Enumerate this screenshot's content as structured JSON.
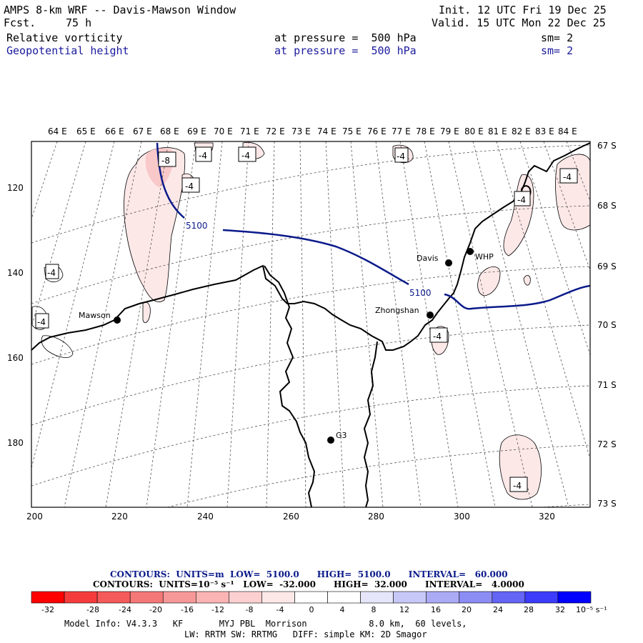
{
  "header": {
    "title": "AMPS 8-km WRF -- Davis-Mawson Window",
    "fcst_label": "Fcst.",
    "fcst_value": "75 h",
    "init": "Init. 12 UTC Fri 19 Dec 25",
    "valid": "Valid. 15 UTC Mon 22 Dec 25",
    "field1_name": "Relative vorticity",
    "field1_level": "at pressure =  500 hPa",
    "field1_sm": "sm= 2",
    "field2_name": "Geopotential height",
    "field2_level": "at pressure =  500 hPa",
    "field2_sm": "sm= 2"
  },
  "map": {
    "lon_labels": [
      "64 E",
      "65 E",
      "66 E",
      "67 E",
      "68 E",
      "69 E",
      "70 E",
      "71 E",
      "72 E",
      "73 E",
      "74 E",
      "75 E",
      "76 E",
      "77 E",
      "78 E",
      "79 E",
      "80 E",
      "81 E",
      "82 E",
      "83 E",
      "84 E"
    ],
    "lat_labels": [
      "67 S",
      "68 S",
      "69 S",
      "70 S",
      "71 S",
      "72 S",
      "73 S"
    ],
    "y_ticks": [
      "120",
      "140",
      "160",
      "180"
    ],
    "x_ticks": [
      "200",
      "220",
      "240",
      "260",
      "280",
      "300",
      "320"
    ],
    "stations": [
      {
        "name": "Mawson"
      },
      {
        "name": "Davis"
      },
      {
        "name": "WHP"
      },
      {
        "name": "Zhongshan"
      },
      {
        "name": "G3"
      }
    ],
    "height_contour_labels": [
      "5100",
      "5100"
    ],
    "vorticity_labels": [
      "-8",
      "-4",
      "-4",
      "-4",
      "-4",
      "-4",
      "-4",
      "-4",
      "-4",
      "-4",
      "-4"
    ],
    "colors": {
      "height_contour": "#0a1a8a",
      "coast": "#000000",
      "grid": "#555555",
      "vort_light": "#fde8e8",
      "vort_mid": "#f9c9c9"
    }
  },
  "legend": {
    "height_line": "CONTOURS:  UNITS=m  LOW=  5100.0      HIGH=  5100.0      INTERVAL=   60.000",
    "vort_line": "CONTOURS:  UNITS=10⁻⁵ s⁻¹   LOW=  -32.000      HIGH=  32.000      INTERVAL=   4.0000",
    "colorbar_ticks": [
      "-32",
      "-28",
      "-24",
      "-20",
      "-16",
      "-12",
      "-8",
      "-4",
      "0",
      "4",
      "8",
      "12",
      "16",
      "20",
      "24",
      "28",
      "32"
    ],
    "colorbar_unit": "10⁻⁵ s⁻¹",
    "colorbar_colors": [
      "#ff0000",
      "#f53c3c",
      "#f55a5a",
      "#f57878",
      "#f79898",
      "#fab4b4",
      "#fcd0d0",
      "#fde8e8",
      "#ffffff",
      "#ffffff",
      "#e6e6fa",
      "#c8c8f8",
      "#aaaaf5",
      "#8c8cf5",
      "#6464f5",
      "#3c3cfa",
      "#0000ff"
    ]
  },
  "model_info": {
    "line1": "Model Info: V4.3.3   KF       MYJ PBL  Morrison            8.0 km,  60 levels,",
    "line2": "LW: RRTM SW: RRTMG   DIFF: simple KM: 2D Smagor"
  }
}
